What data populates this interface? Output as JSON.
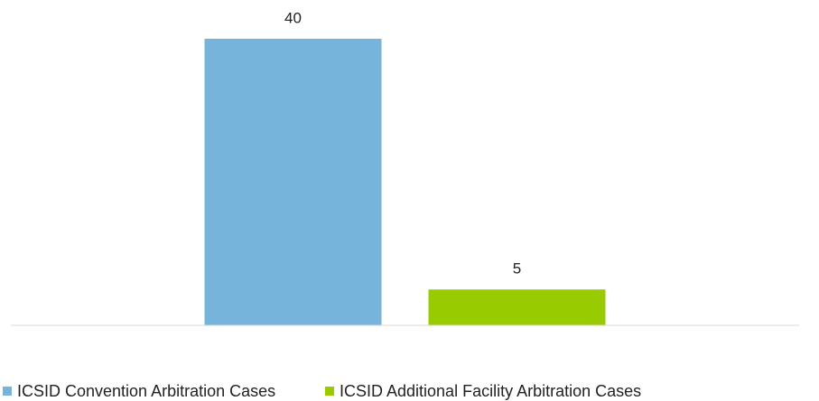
{
  "chart_data": {
    "type": "bar",
    "categories": [
      null
    ],
    "series": [
      {
        "name": "ICSID Convention Arbitration Cases",
        "color": "#77b4dc",
        "values": [
          40
        ]
      },
      {
        "name": "ICSID Additional Facility Arbitration Cases",
        "color": "#99cc00",
        "values": [
          5
        ]
      }
    ],
    "legend": "bottom"
  }
}
